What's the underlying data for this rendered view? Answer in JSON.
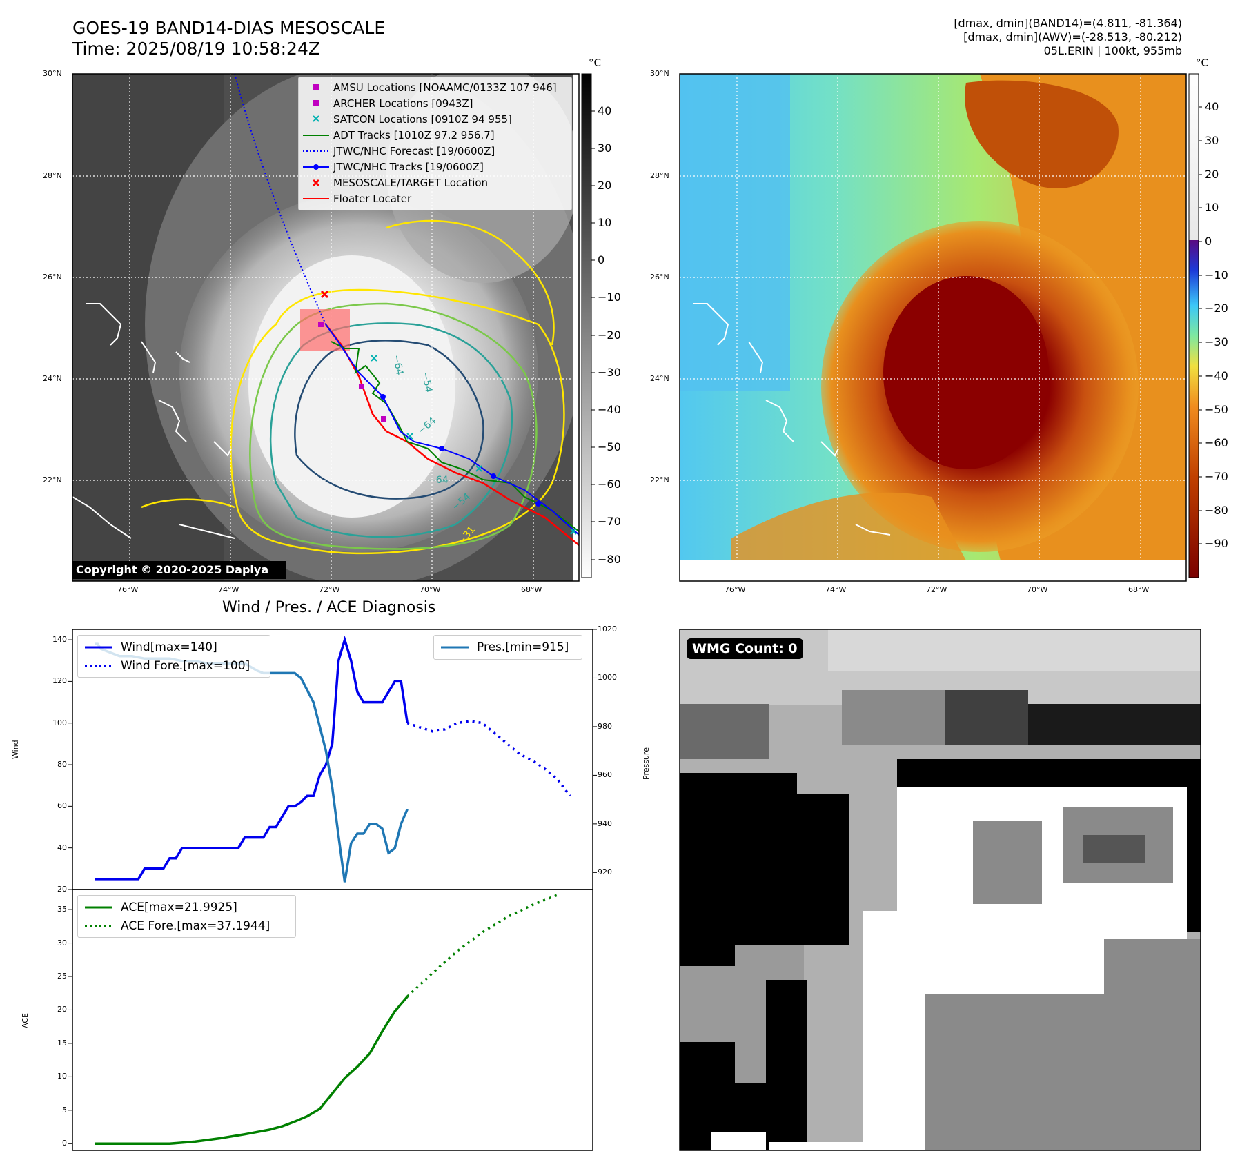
{
  "header": {
    "title_line1": "GOES-19 BAND14-DIAS MESOSCALE",
    "title_line2": "Time: 2025/08/19 10:58:24Z",
    "info_line1": "[dmax, dmin](BAND14)=(4.811, -81.364)",
    "info_line2": "[dmax, dmin](AWV)=(-28.513, -80.212)",
    "info_line3": "05L.ERIN | 100kt, 955mb",
    "copyright": "Copyright © 2020-2025 Dapiya"
  },
  "maps": {
    "lat_labels": [
      "30°N",
      "28°N",
      "26°N",
      "24°N",
      "22°N"
    ],
    "lon_labels": [
      "76°W",
      "74°W",
      "72°W",
      "70°W",
      "68°W"
    ],
    "colorbar_unit": "°C",
    "ir_colorbar_ticks": [
      "40",
      "30",
      "20",
      "10",
      "0",
      "−10",
      "−20",
      "−30",
      "−40",
      "−50",
      "−60",
      "−70",
      "−80"
    ],
    "enh_colorbar_ticks": [
      "40",
      "30",
      "20",
      "10",
      "0",
      "−10",
      "−20",
      "−30",
      "−40",
      "−50",
      "−60",
      "−70",
      "−80",
      "−90"
    ],
    "contour_labels": [
      "−64",
      "−64",
      "−64",
      "−54",
      "−31",
      "−54"
    ],
    "colors": {
      "ir_bg": "#5a5a5a",
      "enh_cold": "#8b0000",
      "enh_warm": "#66e0d8",
      "yellow": "#ffe600",
      "green": "#7bc84a",
      "teal": "#2aa198",
      "navy": "#244b73"
    }
  },
  "legend_map": {
    "items": [
      {
        "label": "AMSU Locations [NOAAMC/0133Z 107 946]",
        "icon": "magenta-square",
        "color": "#c000c0"
      },
      {
        "label": "ARCHER Locations [0943Z]",
        "icon": "magenta-square",
        "color": "#c000c0"
      },
      {
        "label": "SATCON Locations [0910Z 94 955]",
        "icon": "cyan-x",
        "color": "#00b0b0"
      },
      {
        "label": "ADT Tracks [1010Z 97.2 956.7]",
        "icon": "green-line",
        "color": "#008000"
      },
      {
        "label": "JTWC/NHC Forecast [19/0600Z]",
        "icon": "blue-dotted-line",
        "color": "#0000ff"
      },
      {
        "label": "JTWC/NHC Tracks [19/0600Z]",
        "icon": "blue-line-dot",
        "color": "#0000ff"
      },
      {
        "label": "MESOSCALE/TARGET Location",
        "icon": "red-x",
        "color": "#ff0000"
      },
      {
        "label": "Floater Locater",
        "icon": "red-line",
        "color": "#ff0000"
      }
    ]
  },
  "wmg": {
    "label": "WMG Count: 0"
  },
  "chart_data": [
    {
      "type": "line",
      "title": "Wind / Pres. / ACE Diagnosis",
      "ylabel": "Wind",
      "y2label": "Pressure",
      "ylim": [
        20,
        145
      ],
      "y2lim": [
        913,
        1020
      ],
      "y_ticks": [
        "20",
        "40",
        "60",
        "80",
        "100",
        "120",
        "140"
      ],
      "y2_ticks": [
        "920",
        "940",
        "960",
        "980",
        "1000",
        "1020"
      ],
      "legend_left": [
        "Wind[max=140]",
        "Wind Fore.[max=100]"
      ],
      "legend_right": [
        "Pres.[min=915]"
      ],
      "series": [
        {
          "name": "Wind[max=140]",
          "style": "solid",
          "color": "#0000ee",
          "axis": "left",
          "x": [
            0,
            1,
            2,
            3,
            4,
            5,
            6,
            7,
            8,
            9,
            10,
            11,
            12,
            13,
            14,
            15,
            16,
            17,
            18,
            19,
            20,
            21,
            22,
            23,
            24,
            25,
            26,
            27,
            28,
            29,
            30,
            31,
            32,
            33,
            34,
            35,
            36,
            37,
            38,
            39,
            40,
            41,
            42,
            43,
            44,
            45,
            46,
            47,
            48,
            49,
            50
          ],
          "y": [
            25,
            25,
            25,
            25,
            25,
            25,
            25,
            25,
            30,
            30,
            30,
            30,
            35,
            35,
            40,
            40,
            40,
            40,
            40,
            40,
            40,
            40,
            40,
            40,
            45,
            45,
            45,
            45,
            50,
            50,
            55,
            60,
            60,
            62,
            65,
            65,
            75,
            80,
            90,
            130,
            140,
            130,
            115,
            110,
            110,
            110,
            110,
            115,
            120,
            120,
            100
          ]
        },
        {
          "name": "Wind Fore.[max=100]",
          "style": "dotted",
          "color": "#0000ee",
          "axis": "left",
          "x": [
            50,
            52,
            54,
            56,
            58,
            60,
            62,
            64,
            66,
            68,
            70,
            72,
            74,
            76
          ],
          "y": [
            100,
            98,
            96,
            97,
            100,
            101,
            100,
            95,
            90,
            85,
            82,
            78,
            73,
            65
          ]
        },
        {
          "name": "Pres.[min=915]",
          "style": "solid",
          "color": "#1f77b4",
          "axis": "right",
          "x": [
            0,
            0.5,
            1,
            2,
            3,
            4,
            6,
            8,
            10,
            12,
            14,
            16,
            18,
            20,
            22,
            24,
            26,
            27,
            28,
            29,
            30,
            31,
            32,
            33,
            34,
            35,
            36,
            37,
            38,
            39,
            40,
            41,
            42,
            43,
            44,
            45,
            46,
            47,
            48,
            49,
            50
          ],
          "y": [
            1014,
            1014,
            1012,
            1011,
            1010,
            1009,
            1009,
            1008,
            1008,
            1008,
            1007,
            1007,
            1006,
            1006,
            1006,
            1006,
            1003,
            1002,
            1002,
            1002,
            1002,
            1002,
            1002,
            1000,
            995,
            990,
            980,
            970,
            955,
            935,
            916,
            932,
            936,
            936,
            940,
            940,
            938,
            928,
            930,
            940,
            946
          ]
        }
      ]
    },
    {
      "type": "line",
      "ylabel": "ACE",
      "ylim": [
        -1,
        38
      ],
      "y_ticks": [
        "0",
        "5",
        "10",
        "15",
        "20",
        "25",
        "30",
        "35"
      ],
      "legend": [
        "ACE[max=21.9925]",
        "ACE Fore.[max=37.1944]"
      ],
      "series": [
        {
          "name": "ACE[max=21.9925]",
          "style": "solid",
          "color": "#008000",
          "x": [
            0,
            4,
            8,
            12,
            16,
            20,
            24,
            28,
            30,
            32,
            34,
            36,
            38,
            40,
            42,
            44,
            46,
            48,
            50
          ],
          "y": [
            0,
            0,
            0,
            0,
            0.3,
            0.8,
            1.4,
            2.1,
            2.6,
            3.3,
            4.1,
            5.2,
            7.5,
            9.8,
            11.5,
            13.5,
            16.8,
            19.8,
            21.99
          ]
        },
        {
          "name": "ACE Fore.[max=37.1944]",
          "style": "dotted",
          "color": "#008000",
          "x": [
            50,
            54,
            58,
            62,
            66,
            70,
            74
          ],
          "y": [
            21.99,
            25.5,
            28.8,
            31.6,
            33.9,
            35.7,
            37.19
          ]
        }
      ]
    }
  ]
}
